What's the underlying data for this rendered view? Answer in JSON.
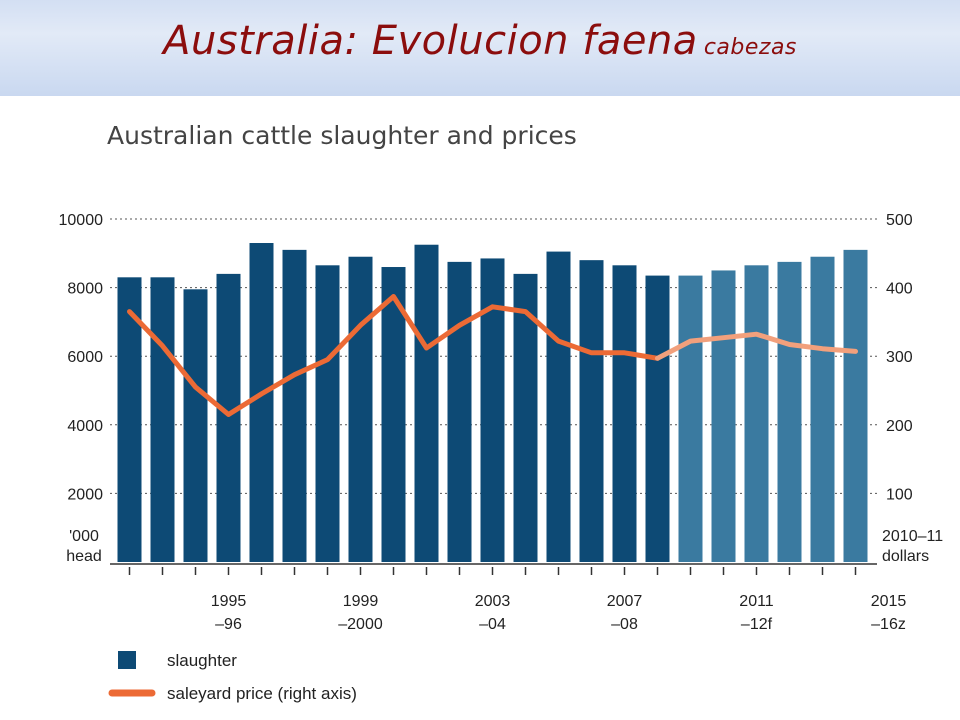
{
  "slide": {
    "title": "Australia: Evolucion faena",
    "subtitle": "cabezas"
  },
  "colors": {
    "banner": "#d3dff3",
    "title_text": "#8b0d0d",
    "bar_actual": "#0d4a75",
    "bar_forecast": "#3a7aa0",
    "line_actual": "#ec6a35",
    "line_forecast": "#f2a07c"
  },
  "chart_data": {
    "type": "bar",
    "title": "Australian cattle slaughter and prices",
    "left_axis_unit": [
      "'000",
      "head"
    ],
    "right_axis_unit": [
      "2010–11",
      "dollars"
    ],
    "left_ylim": [
      0,
      10000
    ],
    "right_ylim": [
      0,
      500
    ],
    "left_ticks": [
      2000,
      4000,
      6000,
      8000,
      10000
    ],
    "right_ticks": [
      100,
      200,
      300,
      400,
      500
    ],
    "grid": "dotted horizontal",
    "x_tick_labels": [
      {
        "index": 3,
        "line1": "1995",
        "line2": "–96"
      },
      {
        "index": 7,
        "line1": "1999",
        "line2": "–2000"
      },
      {
        "index": 11,
        "line1": "2003",
        "line2": "–04"
      },
      {
        "index": 15,
        "line1": "2007",
        "line2": "–08"
      },
      {
        "index": 19,
        "line1": "2011",
        "line2": "–12f"
      },
      {
        "index": 23,
        "line1": "2015",
        "line2": "–16z"
      }
    ],
    "series": [
      {
        "name": "slaughter",
        "type": "bar",
        "axis": "left",
        "values": [
          8300,
          8300,
          7950,
          8400,
          9300,
          9100,
          8650,
          8900,
          8600,
          9250,
          8750,
          8850,
          8400,
          9050,
          8800,
          8650,
          8350,
          8350,
          8500,
          8650,
          8750,
          8900,
          9100
        ],
        "forecast_from_index": 17
      },
      {
        "name": "saleyard price (right axis)",
        "type": "line",
        "axis": "right",
        "values": [
          365,
          315,
          255,
          215,
          245,
          273,
          295,
          345,
          387,
          312,
          345,
          372,
          365,
          322,
          305,
          305,
          297,
          322,
          327,
          332,
          317,
          311,
          307
        ],
        "forecast_from_index": 16
      }
    ],
    "legend": {
      "placement": "bottom-left",
      "items": [
        "slaughter",
        "saleyard price (right axis)"
      ]
    }
  }
}
